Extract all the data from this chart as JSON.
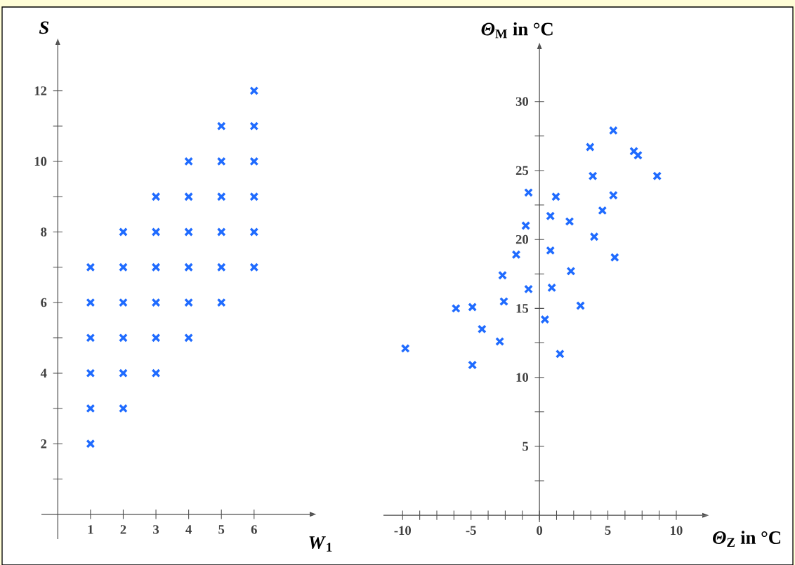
{
  "chart_data": [
    {
      "type": "scatter",
      "xlabel": "*W*$_{1}$",
      "ylabel": "*S*",
      "marker": "cross",
      "grid": false,
      "legend": false,
      "xlim": [
        -0.5,
        7.7
      ],
      "ylim": [
        -0.7,
        13.3
      ],
      "xticks": [
        1,
        2,
        3,
        4,
        5,
        6
      ],
      "yticks": [
        {
          "value": 1,
          "label": null
        },
        2,
        {
          "value": 3,
          "label": null
        },
        4,
        {
          "value": 5,
          "label": null
        },
        6,
        {
          "value": 7,
          "label": null
        },
        8,
        {
          "value": 9,
          "label": null
        },
        10,
        {
          "value": 11,
          "label": null
        },
        12
      ],
      "series": [
        {
          "color": "#1f6bff",
          "x": [
            1,
            1,
            1,
            1,
            1,
            1,
            2,
            2,
            2,
            2,
            2,
            2,
            3,
            3,
            3,
            3,
            3,
            3,
            4,
            4,
            4,
            4,
            4,
            4,
            5,
            5,
            5,
            5,
            5,
            5,
            6,
            6,
            6,
            6,
            6,
            6
          ],
          "values": [
            2,
            3,
            4,
            5,
            6,
            7,
            3,
            4,
            5,
            6,
            7,
            8,
            4,
            5,
            6,
            7,
            8,
            9,
            5,
            6,
            7,
            8,
            9,
            10,
            6,
            7,
            8,
            9,
            10,
            11,
            7,
            8,
            9,
            10,
            11,
            12
          ]
        }
      ]
    },
    {
      "type": "scatter",
      "xlabel": "*Θ*$_{Z}$ in °C",
      "ylabel": "*Θ*$_{M}$ in °C",
      "marker": "cross",
      "grid": false,
      "legend": false,
      "xlim": [
        -11.4,
        11.9
      ],
      "ylim": [
        -0.5,
        33.8
      ],
      "xticks": [
        -10,
        {
          "value": -8.75,
          "label": null
        },
        {
          "value": -7.5,
          "label": null
        },
        {
          "value": -6.25,
          "label": null
        },
        -5,
        {
          "value": -3.75,
          "label": null
        },
        {
          "value": -2.5,
          "label": null
        },
        {
          "value": -1.25,
          "label": null
        },
        0,
        {
          "value": 1.25,
          "label": null
        },
        {
          "value": 2.5,
          "label": null
        },
        {
          "value": 3.75,
          "label": null
        },
        5,
        {
          "value": 6.25,
          "label": null
        },
        {
          "value": 7.5,
          "label": null
        },
        {
          "value": 8.75,
          "label": null
        },
        10
      ],
      "yticks": [
        {
          "value": 2.5,
          "label": null
        },
        5,
        {
          "value": 7.5,
          "label": null
        },
        10,
        {
          "value": 12.5,
          "label": null
        },
        15,
        {
          "value": 17.5,
          "label": null
        },
        20,
        {
          "value": 22.5,
          "label": null
        },
        25,
        {
          "value": 27.5,
          "label": null
        },
        30
      ],
      "series": [
        {
          "color": "#1f6bff",
          "x": [
            -9.8,
            -6.1,
            -4.9,
            -4.2,
            -4.9,
            -2.9,
            -2.7,
            -2.6,
            -1.7,
            -0.8,
            -1.0,
            -0.8,
            0.4,
            0.8,
            0.8,
            0.9,
            1.5,
            1.2,
            2.2,
            2.3,
            3.0,
            3.7,
            3.9,
            4.0,
            4.6,
            5.4,
            5.4,
            5.5,
            6.9,
            7.2,
            8.6
          ],
          "values": [
            12.1,
            15.0,
            15.1,
            13.5,
            10.9,
            12.6,
            17.4,
            15.5,
            18.9,
            16.4,
            21.0,
            23.4,
            14.2,
            21.7,
            19.2,
            16.5,
            11.7,
            23.1,
            21.3,
            17.7,
            15.2,
            26.7,
            24.6,
            20.2,
            22.1,
            27.9,
            23.2,
            18.7,
            26.4,
            26.1,
            24.6
          ]
        }
      ]
    }
  ]
}
